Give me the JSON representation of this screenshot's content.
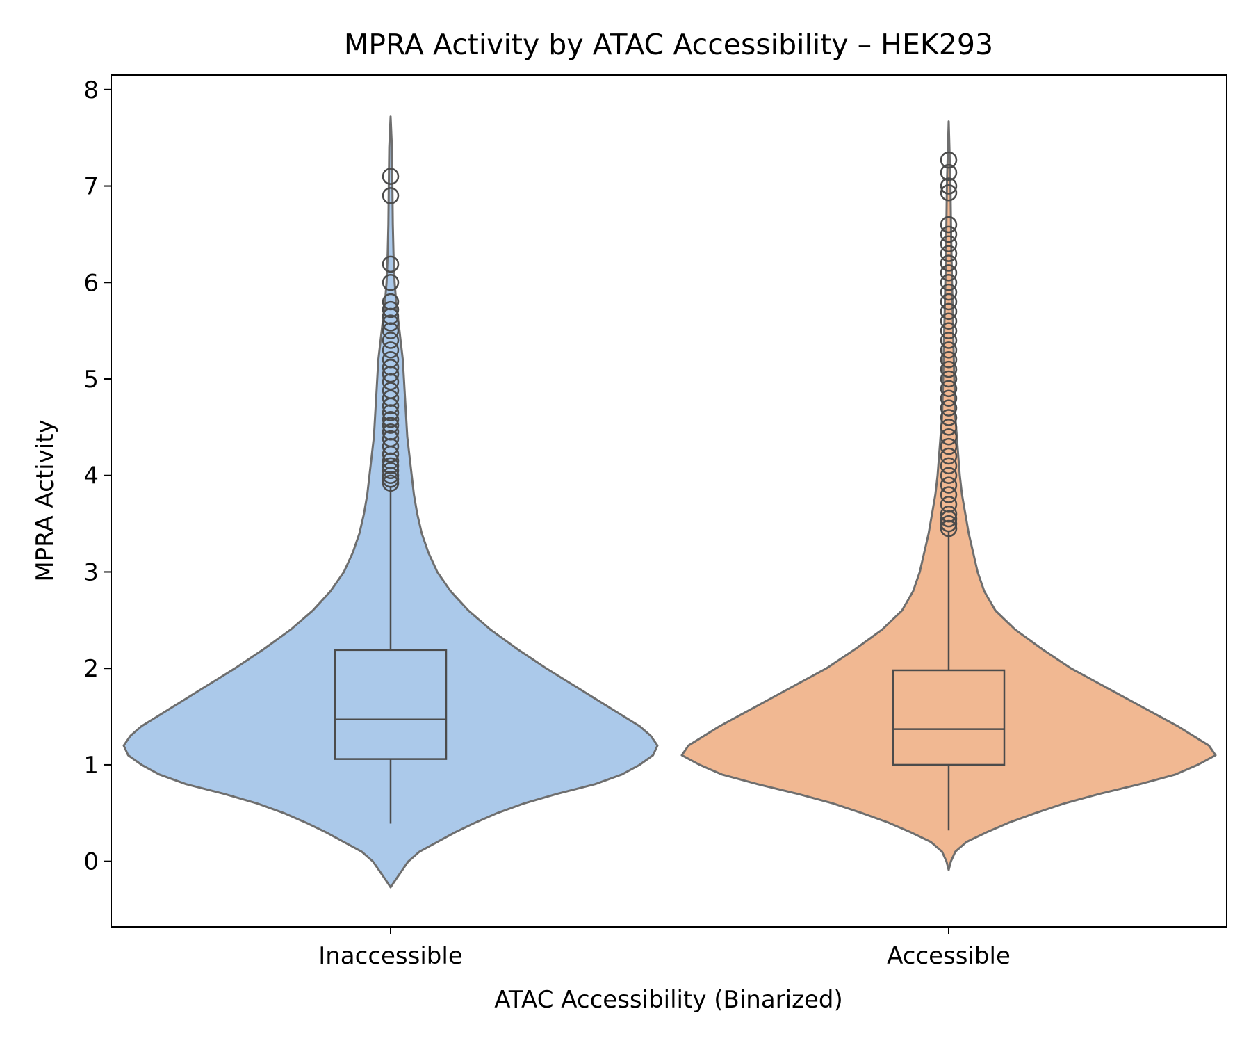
{
  "chart_data": {
    "type": "violin",
    "title": "MPRA Activity by ATAC Accessibility – HEK293",
    "xlabel": "ATAC Accessibility (Binarized)",
    "ylabel": "MPRA Activity",
    "ylim": [
      -0.68,
      8.15
    ],
    "yticks": [
      0,
      1,
      2,
      3,
      4,
      5,
      6,
      7,
      8
    ],
    "categories": [
      "Inaccessible",
      "Accessible"
    ],
    "colors": {
      "Inaccessible": "#abc9ea",
      "Accessible": "#f1b892",
      "outline": "#6e6e6e",
      "box": "#4b4b4b"
    },
    "groups": [
      {
        "name": "Inaccessible",
        "box": {
          "q1": 1.06,
          "median": 1.47,
          "q3": 2.19,
          "whisker_low": 0.39,
          "whisker_high": 3.88
        },
        "outliers": [
          3.92,
          3.96,
          4.0,
          4.05,
          4.1,
          4.15,
          4.22,
          4.3,
          4.38,
          4.45,
          4.52,
          4.58,
          4.65,
          4.72,
          4.8,
          4.88,
          4.97,
          5.05,
          5.12,
          5.2,
          5.3,
          5.4,
          5.5,
          5.58,
          5.65,
          5.72,
          5.8,
          6.0,
          6.19,
          6.9,
          7.1
        ],
        "violin_profile": [
          [
            -0.27,
            0.0
          ],
          [
            -0.2,
            0.02
          ],
          [
            -0.1,
            0.05
          ],
          [
            0.0,
            0.08
          ],
          [
            0.1,
            0.13
          ],
          [
            0.2,
            0.21
          ],
          [
            0.3,
            0.29
          ],
          [
            0.4,
            0.38
          ],
          [
            0.5,
            0.48
          ],
          [
            0.6,
            0.6
          ],
          [
            0.7,
            0.75
          ],
          [
            0.8,
            0.92
          ],
          [
            0.9,
            1.04
          ],
          [
            1.0,
            1.12
          ],
          [
            1.1,
            1.18
          ],
          [
            1.2,
            1.2
          ],
          [
            1.3,
            1.17
          ],
          [
            1.4,
            1.12
          ],
          [
            1.5,
            1.05
          ],
          [
            1.6,
            0.98
          ],
          [
            1.7,
            0.91
          ],
          [
            1.8,
            0.84
          ],
          [
            1.9,
            0.77
          ],
          [
            2.0,
            0.7
          ],
          [
            2.2,
            0.57
          ],
          [
            2.4,
            0.45
          ],
          [
            2.6,
            0.35
          ],
          [
            2.8,
            0.27
          ],
          [
            3.0,
            0.21
          ],
          [
            3.2,
            0.17
          ],
          [
            3.4,
            0.14
          ],
          [
            3.6,
            0.12
          ],
          [
            3.8,
            0.105
          ],
          [
            4.0,
            0.095
          ],
          [
            4.2,
            0.085
          ],
          [
            4.4,
            0.075
          ],
          [
            4.6,
            0.07
          ],
          [
            4.8,
            0.065
          ],
          [
            5.0,
            0.06
          ],
          [
            5.2,
            0.055
          ],
          [
            5.4,
            0.045
          ],
          [
            5.6,
            0.035
          ],
          [
            5.8,
            0.025
          ],
          [
            6.0,
            0.018
          ],
          [
            6.3,
            0.013
          ],
          [
            6.6,
            0.01
          ],
          [
            7.0,
            0.008
          ],
          [
            7.4,
            0.006
          ],
          [
            7.72,
            0.0
          ]
        ]
      },
      {
        "name": "Accessible",
        "box": {
          "q1": 1.0,
          "median": 1.37,
          "q3": 1.98,
          "whisker_low": 0.32,
          "whisker_high": 3.42
        },
        "outliers": [
          3.45,
          3.5,
          3.55,
          3.6,
          3.7,
          3.8,
          3.9,
          4.0,
          4.1,
          4.2,
          4.3,
          4.4,
          4.5,
          4.6,
          4.7,
          4.8,
          4.9,
          5.0,
          5.1,
          5.2,
          5.3,
          5.4,
          5.5,
          5.6,
          5.7,
          5.8,
          5.9,
          6.0,
          6.1,
          6.2,
          6.3,
          6.4,
          6.5,
          6.6,
          6.93,
          7.0,
          7.14,
          7.27
        ],
        "violin_profile": [
          [
            -0.09,
            0.0
          ],
          [
            0.0,
            0.01
          ],
          [
            0.1,
            0.03
          ],
          [
            0.2,
            0.08
          ],
          [
            0.3,
            0.17
          ],
          [
            0.4,
            0.27
          ],
          [
            0.5,
            0.39
          ],
          [
            0.6,
            0.52
          ],
          [
            0.7,
            0.68
          ],
          [
            0.8,
            0.86
          ],
          [
            0.9,
            1.02
          ],
          [
            1.0,
            1.12
          ],
          [
            1.1,
            1.2
          ],
          [
            1.2,
            1.17
          ],
          [
            1.3,
            1.1
          ],
          [
            1.4,
            1.03
          ],
          [
            1.5,
            0.95
          ],
          [
            1.6,
            0.87
          ],
          [
            1.7,
            0.79
          ],
          [
            1.8,
            0.71
          ],
          [
            1.9,
            0.63
          ],
          [
            2.0,
            0.55
          ],
          [
            2.2,
            0.42
          ],
          [
            2.4,
            0.3
          ],
          [
            2.6,
            0.21
          ],
          [
            2.8,
            0.16
          ],
          [
            3.0,
            0.13
          ],
          [
            3.2,
            0.11
          ],
          [
            3.4,
            0.09
          ],
          [
            3.6,
            0.075
          ],
          [
            3.8,
            0.06
          ],
          [
            4.0,
            0.05
          ],
          [
            4.3,
            0.04
          ],
          [
            4.6,
            0.03
          ],
          [
            5.0,
            0.025
          ],
          [
            5.5,
            0.02
          ],
          [
            6.0,
            0.015
          ],
          [
            6.5,
            0.011
          ],
          [
            7.0,
            0.008
          ],
          [
            7.67,
            0.0
          ]
        ]
      }
    ],
    "grid": false,
    "legend": "none"
  }
}
